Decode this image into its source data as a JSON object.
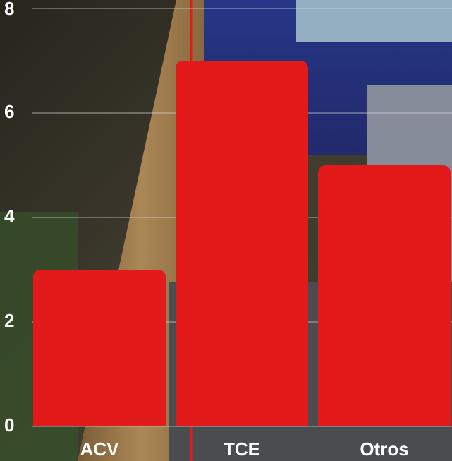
{
  "chart_data": {
    "type": "bar",
    "categories": [
      "ACV",
      "TCE",
      "Otros"
    ],
    "values": [
      3,
      7,
      5
    ],
    "color": "#e21a1a",
    "ylim": [
      0,
      8
    ],
    "yticks": [
      0,
      2,
      4,
      6,
      8
    ],
    "grid": true
  }
}
